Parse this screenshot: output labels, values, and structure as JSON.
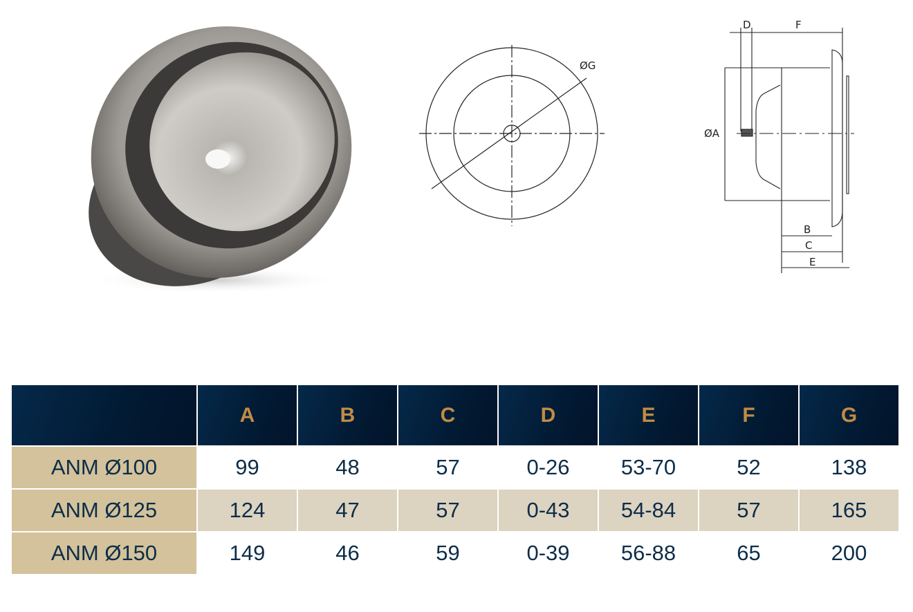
{
  "diagram": {
    "front_label": "ØG",
    "side_labels": {
      "a": "ØA",
      "b": "B",
      "c": "C",
      "d": "D",
      "e": "E",
      "f": "F"
    }
  },
  "table": {
    "columns": [
      "",
      "A",
      "B",
      "C",
      "D",
      "E",
      "F",
      "G"
    ],
    "rows": [
      {
        "model": "ANM Ø100",
        "values": [
          "99",
          "48",
          "57",
          "0-26",
          "53-70",
          "52",
          "138"
        ]
      },
      {
        "model": "ANM Ø125",
        "values": [
          "124",
          "47",
          "57",
          "0-43",
          "54-84",
          "57",
          "165"
        ]
      },
      {
        "model": "ANM Ø150",
        "values": [
          "149",
          "46",
          "59",
          "0-39",
          "56-88",
          "65",
          "200"
        ]
      }
    ]
  },
  "colors": {
    "header_bg": "#021a33",
    "header_text": "#c08c45",
    "model_bg": "#d3c29b",
    "alt_row_bg": "#dcd3c0",
    "body_text": "#0d2d48"
  }
}
